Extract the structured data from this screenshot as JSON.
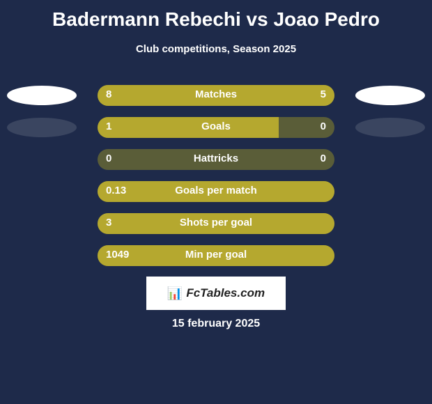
{
  "title": "Badermann Rebechi vs Joao Pedro",
  "subtitle": "Club competitions, Season 2025",
  "date": "15 february 2025",
  "logo": {
    "text": "FcTables.com",
    "icon": "📊"
  },
  "colors": {
    "background": "#1e2a4a",
    "bar_bg": "#5a5d38",
    "bar_fill": "#b5a82f",
    "text": "#ffffff",
    "ellipse_white": "#ffffff",
    "ellipse_dark": "#3a4560"
  },
  "stats": [
    {
      "label": "Matches",
      "left_value": "8",
      "right_value": "5",
      "left_raw": 8,
      "right_raw": 5,
      "left_ellipse": "#ffffff",
      "right_ellipse": "#ffffff",
      "left_fill_width": 200,
      "right_fill_width": 140,
      "full_fill": true
    },
    {
      "label": "Goals",
      "left_value": "1",
      "right_value": "0",
      "left_raw": 1,
      "right_raw": 0,
      "left_ellipse": "#3a4560",
      "right_ellipse": "#3a4560",
      "left_fill_width": 260,
      "right_fill_width": 0,
      "full_fill": false
    },
    {
      "label": "Hattricks",
      "left_value": "0",
      "right_value": "0",
      "left_raw": 0,
      "right_raw": 0,
      "left_ellipse": null,
      "right_ellipse": null,
      "left_fill_width": 0,
      "right_fill_width": 0,
      "full_fill": false
    },
    {
      "label": "Goals per match",
      "left_value": "0.13",
      "right_value": "",
      "left_raw": 0.13,
      "right_raw": 0,
      "left_ellipse": null,
      "right_ellipse": null,
      "left_fill_width": 340,
      "right_fill_width": 0,
      "full_fill": true
    },
    {
      "label": "Shots per goal",
      "left_value": "3",
      "right_value": "",
      "left_raw": 3,
      "right_raw": 0,
      "left_ellipse": null,
      "right_ellipse": null,
      "left_fill_width": 340,
      "right_fill_width": 0,
      "full_fill": true
    },
    {
      "label": "Min per goal",
      "left_value": "1049",
      "right_value": "",
      "left_raw": 1049,
      "right_raw": 0,
      "left_ellipse": null,
      "right_ellipse": null,
      "left_fill_width": 340,
      "right_fill_width": 0,
      "full_fill": true
    }
  ]
}
